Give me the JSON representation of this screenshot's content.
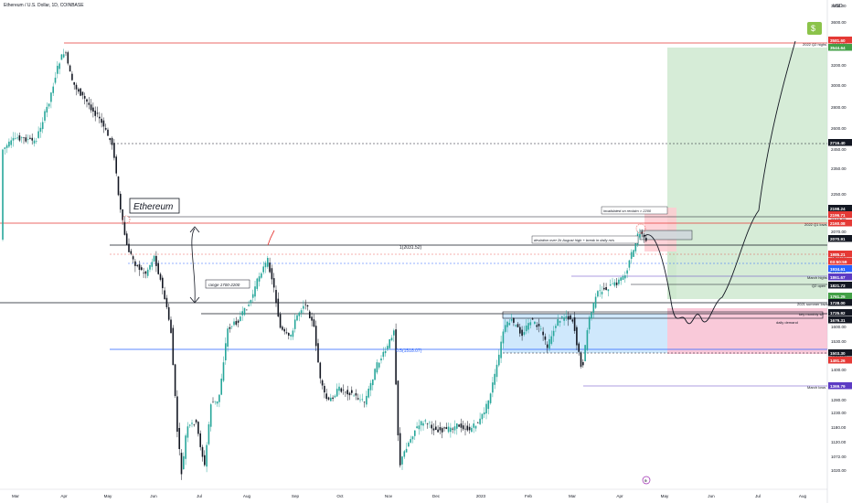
{
  "header": {
    "title": "Ethereum / U.S. Dollar, 1D, COINBASE",
    "currency": "USD",
    "badge_text": "$",
    "emoji_bubble": "⊕"
  },
  "chart_data": {
    "type": "candlestick",
    "title": "Ethereum / U.S. Dollar, 1D, COINBASE",
    "x_ticks": [
      "Mar",
      "Apr",
      "May",
      "Jun",
      "Jul",
      "Aug",
      "Sep",
      "Oct",
      "Nov",
      "Dec",
      "2023",
      "Feb",
      "Mar",
      "Apr",
      "May",
      "Jun",
      "Jul",
      "Aug"
    ],
    "y_ticks": [
      "3800.00",
      "3600.00",
      "3400.00",
      "3200.00",
      "3000.00",
      "2800.00",
      "2600.00",
      "2450.00",
      "2350.00",
      "2250.00",
      "2160.00",
      "2070.00",
      "1985.00",
      "1900.00",
      "1820.00",
      "1740.00",
      "1670.00",
      "1600.00",
      "1530.00",
      "1460.00",
      "1400.00",
      "1340.00",
      "1280.00",
      "1230.00",
      "1180.00",
      "1120.00",
      "1072.00",
      "1020.00"
    ],
    "price_labels": [
      {
        "text": "3581.60",
        "color": "#e53935"
      },
      {
        "text": "3544.64",
        "color": "#43a047"
      },
      {
        "text": "2716.40",
        "color": "#131722"
      },
      {
        "text": "2198.24",
        "color": "#131722"
      },
      {
        "text": "2196.71",
        "color": "#e53935"
      },
      {
        "text": "2160.08",
        "color": "#e53935"
      },
      {
        "text": "2070.91",
        "color": "#131722"
      },
      {
        "text": "1985.21",
        "color": "#e53935"
      },
      {
        "text": "03:50:59",
        "color": "#e53935"
      },
      {
        "text": "1934.61",
        "color": "#2962ff"
      },
      {
        "text": "1861.67",
        "color": "#5c3bc4"
      },
      {
        "text": "1821.73",
        "color": "#131722"
      },
      {
        "text": "1761.25",
        "color": "#43a047"
      },
      {
        "text": "1728.00",
        "color": "#131722"
      },
      {
        "text": "1725.92",
        "color": "#131722"
      },
      {
        "text": "1679.31",
        "color": "#131722"
      },
      {
        "text": "1503.30",
        "color": "#131722"
      },
      {
        "text": "1491.26",
        "color": "#e53935"
      },
      {
        "text": "1369.79",
        "color": "#5c3bc4"
      }
    ],
    "annotations": [
      {
        "text": "Ethereum"
      },
      {
        "text": "range 1700-2200"
      },
      {
        "text": "1(2031.52)"
      },
      {
        "text": "0.5(1518.07)"
      },
      {
        "text": "invalidated on reclaim > 2200"
      },
      {
        "text": "deviation over 2k August high + break in daily m/s"
      },
      {
        "text": "2022 Q2 highs"
      },
      {
        "text": "2022 Q1 lows"
      },
      {
        "text": "March highs"
      },
      {
        "text": "Q2 open"
      },
      {
        "text": "2021 summer lows"
      },
      {
        "text": "key monthly s/r"
      },
      {
        "text": "daily demand"
      },
      {
        "text": "March lows"
      }
    ]
  }
}
